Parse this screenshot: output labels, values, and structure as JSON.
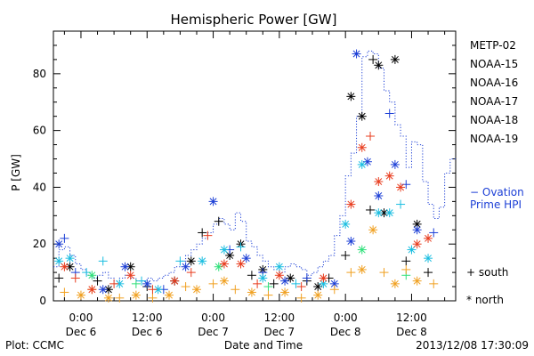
{
  "chart_data": {
    "type": "scatter",
    "title": "Hemispheric Power [GW]",
    "xlabel": "Date and Time",
    "ylabel": "P [GW]",
    "ylim": [
      0,
      95
    ],
    "yticks": [
      0,
      20,
      40,
      60,
      80
    ],
    "xlim": [
      "2013-12-05 19:00",
      "2013-12-08 20:00"
    ],
    "xticks": [
      {
        "time": "2013-12-06 00:00",
        "line1": "0:00",
        "line2": "Dec 6"
      },
      {
        "time": "2013-12-06 12:00",
        "line1": "12:00",
        "line2": "Dec 6"
      },
      {
        "time": "2013-12-07 00:00",
        "line1": "0:00",
        "line2": "Dec 7"
      },
      {
        "time": "2013-12-07 12:00",
        "line1": "12:00",
        "line2": "Dec 7"
      },
      {
        "time": "2013-12-08 00:00",
        "line1": "0:00",
        "line2": "Dec 8"
      },
      {
        "time": "2013-12-08 12:00",
        "line1": "12:00",
        "line2": "Dec 8"
      }
    ],
    "legend_position": "right",
    "marker_legend": [
      {
        "symbol": "+",
        "label": "south"
      },
      {
        "symbol": "*",
        "label": "north"
      }
    ],
    "series": [
      {
        "name": "METP-02",
        "color": "#000000",
        "points": [
          [
            "2013-12-05 20:00",
            8,
            "+"
          ],
          [
            "2013-12-05 22:00",
            12,
            "*"
          ],
          [
            "2013-12-06 03:00",
            7,
            "+"
          ],
          [
            "2013-12-06 05:00",
            4,
            "*"
          ],
          [
            "2013-12-06 09:00",
            12,
            "*"
          ],
          [
            "2013-12-06 12:00",
            5,
            "+"
          ],
          [
            "2013-12-06 17:00",
            7,
            "*"
          ],
          [
            "2013-12-06 20:00",
            14,
            "*"
          ],
          [
            "2013-12-06 22:00",
            24,
            "+"
          ],
          [
            "2013-12-07 01:00",
            28,
            "+"
          ],
          [
            "2013-12-07 03:00",
            16,
            "*"
          ],
          [
            "2013-12-07 05:00",
            20,
            "*"
          ],
          [
            "2013-12-07 07:00",
            9,
            "+"
          ],
          [
            "2013-12-07 09:00",
            11,
            "*"
          ],
          [
            "2013-12-07 11:00",
            6,
            "+"
          ],
          [
            "2013-12-07 14:00",
            8,
            "*"
          ],
          [
            "2013-12-07 17:00",
            7,
            "+"
          ],
          [
            "2013-12-07 19:00",
            5,
            "*"
          ],
          [
            "2013-12-07 21:00",
            8,
            "+"
          ],
          [
            "2013-12-08 00:00",
            16,
            "+"
          ],
          [
            "2013-12-08 01:00",
            72,
            "*"
          ],
          [
            "2013-12-08 03:00",
            65,
            "*"
          ],
          [
            "2013-12-08 04:30",
            32,
            "+"
          ],
          [
            "2013-12-08 05:00",
            85,
            "+"
          ],
          [
            "2013-12-08 06:00",
            83,
            "*"
          ],
          [
            "2013-12-08 07:00",
            31,
            "*"
          ],
          [
            "2013-12-08 09:00",
            85,
            "*"
          ],
          [
            "2013-12-08 11:00",
            14,
            "+"
          ],
          [
            "2013-12-08 13:00",
            27,
            "*"
          ],
          [
            "2013-12-08 15:00",
            10,
            "+"
          ]
        ]
      },
      {
        "name": "NOAA-15",
        "color": "#1c3fd6",
        "points": [
          [
            "2013-12-05 20:00",
            20,
            "*"
          ],
          [
            "2013-12-05 21:00",
            22,
            "+"
          ],
          [
            "2013-12-05 23:00",
            10,
            "+"
          ],
          [
            "2013-12-06 04:00",
            4,
            "*"
          ],
          [
            "2013-12-06 08:00",
            12,
            "*"
          ],
          [
            "2013-12-06 12:00",
            6,
            "*"
          ],
          [
            "2013-12-06 15:00",
            4,
            "+"
          ],
          [
            "2013-12-06 19:00",
            12,
            "*"
          ],
          [
            "2013-12-07 00:00",
            35,
            "*"
          ],
          [
            "2013-12-07 03:00",
            18,
            "+"
          ],
          [
            "2013-12-07 06:00",
            15,
            "*"
          ],
          [
            "2013-12-07 09:00",
            10,
            "+"
          ],
          [
            "2013-12-07 13:00",
            7,
            "*"
          ],
          [
            "2013-12-07 17:00",
            8,
            "+"
          ],
          [
            "2013-12-07 22:00",
            6,
            "*"
          ],
          [
            "2013-12-08 01:00",
            21,
            "*"
          ],
          [
            "2013-12-08 02:00",
            87,
            "*"
          ],
          [
            "2013-12-08 04:00",
            49,
            "*"
          ],
          [
            "2013-12-08 06:00",
            37,
            "*"
          ],
          [
            "2013-12-08 08:00",
            66,
            "+"
          ],
          [
            "2013-12-08 09:00",
            48,
            "*"
          ],
          [
            "2013-12-08 11:00",
            41,
            "+"
          ],
          [
            "2013-12-08 13:00",
            25,
            "*"
          ],
          [
            "2013-12-08 16:00",
            24,
            "+"
          ]
        ]
      },
      {
        "name": "NOAA-16",
        "color": "#19bde0",
        "points": [
          [
            "2013-12-05 20:00",
            14,
            "*"
          ],
          [
            "2013-12-05 22:00",
            15,
            "*"
          ],
          [
            "2013-12-06 01:00",
            10,
            "+"
          ],
          [
            "2013-12-06 04:00",
            14,
            "+"
          ],
          [
            "2013-12-06 07:00",
            6,
            "*"
          ],
          [
            "2013-12-06 11:00",
            7,
            "+"
          ],
          [
            "2013-12-06 14:00",
            4,
            "*"
          ],
          [
            "2013-12-06 18:00",
            14,
            "+"
          ],
          [
            "2013-12-06 22:00",
            14,
            "*"
          ],
          [
            "2013-12-07 02:00",
            18,
            "*"
          ],
          [
            "2013-12-07 05:00",
            19,
            "+"
          ],
          [
            "2013-12-07 09:00",
            8,
            "*"
          ],
          [
            "2013-12-07 12:00",
            12,
            "*"
          ],
          [
            "2013-12-07 15:00",
            6,
            "+"
          ],
          [
            "2013-12-07 20:00",
            6,
            "*"
          ],
          [
            "2013-12-08 00:00",
            27,
            "*"
          ],
          [
            "2013-12-08 03:00",
            48,
            "*"
          ],
          [
            "2013-12-08 06:00",
            31,
            "*"
          ],
          [
            "2013-12-08 08:00",
            31,
            "*"
          ],
          [
            "2013-12-08 10:00",
            34,
            "+"
          ],
          [
            "2013-12-08 12:00",
            18,
            "*"
          ],
          [
            "2013-12-08 15:00",
            15,
            "*"
          ]
        ]
      },
      {
        "name": "NOAA-17",
        "color": "#2ee07a",
        "points": [
          [
            "2013-12-06 02:00",
            9,
            "*"
          ],
          [
            "2013-12-06 10:00",
            6,
            "+"
          ],
          [
            "2013-12-07 01:00",
            12,
            "*"
          ],
          [
            "2013-12-07 10:00",
            5,
            "+"
          ],
          [
            "2013-12-08 03:00",
            18,
            "*"
          ],
          [
            "2013-12-08 11:00",
            9,
            "+"
          ]
        ]
      },
      {
        "name": "NOAA-18",
        "color": "#f0a020",
        "points": [
          [
            "2013-12-05 21:00",
            3,
            "+"
          ],
          [
            "2013-12-06 00:00",
            2,
            "*"
          ],
          [
            "2013-12-06 02:00",
            4,
            "+"
          ],
          [
            "2013-12-06 05:00",
            1,
            "*"
          ],
          [
            "2013-12-06 07:00",
            1,
            "+"
          ],
          [
            "2013-12-06 10:00",
            2,
            "*"
          ],
          [
            "2013-12-06 13:00",
            1,
            "+"
          ],
          [
            "2013-12-06 16:00",
            2,
            "*"
          ],
          [
            "2013-12-06 19:00",
            5,
            "+"
          ],
          [
            "2013-12-06 21:00",
            4,
            "*"
          ],
          [
            "2013-12-07 00:00",
            6,
            "+"
          ],
          [
            "2013-12-07 02:00",
            7,
            "*"
          ],
          [
            "2013-12-07 04:00",
            4,
            "+"
          ],
          [
            "2013-12-07 07:00",
            3,
            "*"
          ],
          [
            "2013-12-07 10:00",
            2,
            "+"
          ],
          [
            "2013-12-07 13:00",
            3,
            "*"
          ],
          [
            "2013-12-07 16:00",
            1,
            "+"
          ],
          [
            "2013-12-07 19:00",
            2,
            "*"
          ],
          [
            "2013-12-07 22:00",
            4,
            "+"
          ],
          [
            "2013-12-08 01:00",
            10,
            "+"
          ],
          [
            "2013-12-08 03:00",
            11,
            "*"
          ],
          [
            "2013-12-08 05:00",
            25,
            "*"
          ],
          [
            "2013-12-08 07:00",
            10,
            "+"
          ],
          [
            "2013-12-08 09:00",
            6,
            "*"
          ],
          [
            "2013-12-08 11:00",
            11,
            "+"
          ],
          [
            "2013-12-08 13:00",
            7,
            "*"
          ],
          [
            "2013-12-08 16:00",
            6,
            "+"
          ]
        ]
      },
      {
        "name": "NOAA-19",
        "color": "#e83c1e",
        "points": [
          [
            "2013-12-05 21:00",
            12,
            "*"
          ],
          [
            "2013-12-05 23:00",
            8,
            "+"
          ],
          [
            "2013-12-06 02:00",
            4,
            "*"
          ],
          [
            "2013-12-06 06:00",
            6,
            "+"
          ],
          [
            "2013-12-06 09:00",
            9,
            "*"
          ],
          [
            "2013-12-06 13:00",
            4,
            "+"
          ],
          [
            "2013-12-06 17:00",
            7,
            "*"
          ],
          [
            "2013-12-06 20:00",
            10,
            "+"
          ],
          [
            "2013-12-06 23:00",
            23,
            "+"
          ],
          [
            "2013-12-07 02:00",
            13,
            "*"
          ],
          [
            "2013-12-07 05:00",
            13,
            "*"
          ],
          [
            "2013-12-07 08:00",
            6,
            "+"
          ],
          [
            "2013-12-07 12:00",
            9,
            "*"
          ],
          [
            "2013-12-07 16:00",
            5,
            "+"
          ],
          [
            "2013-12-07 20:00",
            8,
            "*"
          ],
          [
            "2013-12-08 01:00",
            34,
            "*"
          ],
          [
            "2013-12-08 03:00",
            54,
            "*"
          ],
          [
            "2013-12-08 04:30",
            58,
            "+"
          ],
          [
            "2013-12-08 06:00",
            42,
            "*"
          ],
          [
            "2013-12-08 08:00",
            44,
            "*"
          ],
          [
            "2013-12-08 10:00",
            40,
            "*"
          ],
          [
            "2013-12-08 13:00",
            20,
            "*"
          ],
          [
            "2013-12-08 15:00",
            22,
            "*"
          ]
        ]
      }
    ],
    "ovation": {
      "name": "Ovation Prime HPI",
      "legend_label": "− Ovation",
      "legend_label_2": "Prime HPI",
      "color": "#1c3fd6",
      "style": "dotted step",
      "points": [
        [
          "2013-12-05 19:00",
          12
        ],
        [
          "2013-12-05 20:00",
          18
        ],
        [
          "2013-12-05 21:00",
          19
        ],
        [
          "2013-12-05 22:00",
          16
        ],
        [
          "2013-12-05 23:00",
          13
        ],
        [
          "2013-12-06 00:00",
          11
        ],
        [
          "2013-12-06 01:00",
          9
        ],
        [
          "2013-12-06 02:00",
          8
        ],
        [
          "2013-12-06 03:00",
          9
        ],
        [
          "2013-12-06 04:00",
          10
        ],
        [
          "2013-12-06 05:00",
          8
        ],
        [
          "2013-12-06 06:00",
          7
        ],
        [
          "2013-12-06 07:00",
          8
        ],
        [
          "2013-12-06 08:00",
          9
        ],
        [
          "2013-12-06 09:00",
          8
        ],
        [
          "2013-12-06 10:00",
          7
        ],
        [
          "2013-12-06 11:00",
          7
        ],
        [
          "2013-12-06 12:00",
          8
        ],
        [
          "2013-12-06 13:00",
          7
        ],
        [
          "2013-12-06 14:00",
          8
        ],
        [
          "2013-12-06 15:00",
          9
        ],
        [
          "2013-12-06 16:00",
          10
        ],
        [
          "2013-12-06 17:00",
          12
        ],
        [
          "2013-12-06 18:00",
          14
        ],
        [
          "2013-12-06 19:00",
          16
        ],
        [
          "2013-12-06 20:00",
          18
        ],
        [
          "2013-12-06 21:00",
          20
        ],
        [
          "2013-12-06 22:00",
          22
        ],
        [
          "2013-12-06 23:00",
          24
        ],
        [
          "2013-12-07 00:00",
          27
        ],
        [
          "2013-12-07 01:00",
          29
        ],
        [
          "2013-12-07 02:00",
          27
        ],
        [
          "2013-12-07 03:00",
          25
        ],
        [
          "2013-12-07 04:00",
          31
        ],
        [
          "2013-12-07 05:00",
          28
        ],
        [
          "2013-12-07 06:00",
          21
        ],
        [
          "2013-12-07 07:00",
          19
        ],
        [
          "2013-12-07 08:00",
          16
        ],
        [
          "2013-12-07 09:00",
          14
        ],
        [
          "2013-12-07 10:00",
          12
        ],
        [
          "2013-12-07 11:00",
          11
        ],
        [
          "2013-12-07 12:00",
          10
        ],
        [
          "2013-12-07 13:00",
          12
        ],
        [
          "2013-12-07 14:00",
          13
        ],
        [
          "2013-12-07 15:00",
          12
        ],
        [
          "2013-12-07 16:00",
          11
        ],
        [
          "2013-12-07 17:00",
          9
        ],
        [
          "2013-12-07 18:00",
          10
        ],
        [
          "2013-12-07 19:00",
          12
        ],
        [
          "2013-12-07 20:00",
          14
        ],
        [
          "2013-12-07 21:00",
          16
        ],
        [
          "2013-12-07 22:00",
          23
        ],
        [
          "2013-12-07 23:00",
          30
        ],
        [
          "2013-12-08 00:00",
          44
        ],
        [
          "2013-12-08 01:00",
          52
        ],
        [
          "2013-12-08 02:00",
          65
        ],
        [
          "2013-12-08 03:00",
          86
        ],
        [
          "2013-12-08 04:00",
          88
        ],
        [
          "2013-12-08 05:00",
          87
        ],
        [
          "2013-12-08 06:00",
          82
        ],
        [
          "2013-12-08 07:00",
          74
        ],
        [
          "2013-12-08 08:00",
          70
        ],
        [
          "2013-12-08 09:00",
          62
        ],
        [
          "2013-12-08 10:00",
          58
        ],
        [
          "2013-12-08 11:00",
          47
        ],
        [
          "2013-12-08 12:00",
          56
        ],
        [
          "2013-12-08 13:00",
          55
        ],
        [
          "2013-12-08 14:00",
          42
        ],
        [
          "2013-12-08 15:00",
          34
        ],
        [
          "2013-12-08 16:00",
          29
        ],
        [
          "2013-12-08 17:00",
          33
        ],
        [
          "2013-12-08 18:00",
          45
        ],
        [
          "2013-12-08 19:00",
          50
        ]
      ]
    }
  },
  "footer": {
    "plot_credit": "Plot: CCMC",
    "timestamp": "2013/12/08 17:30:09"
  }
}
